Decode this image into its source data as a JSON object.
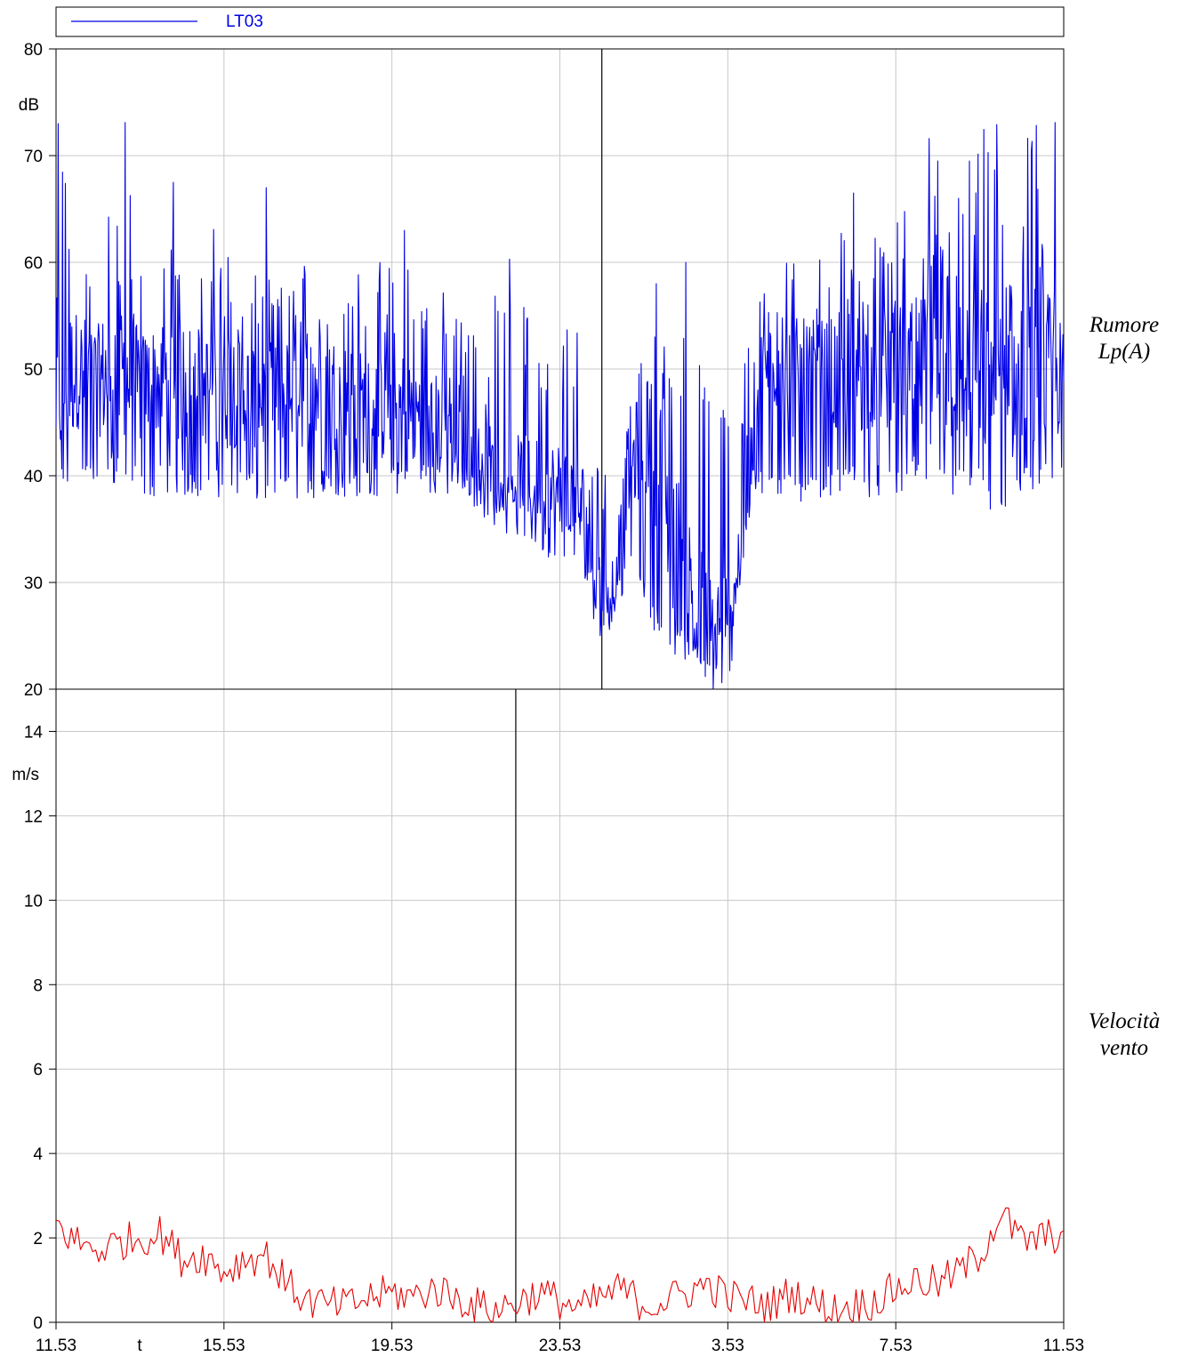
{
  "legend": {
    "label": "LT03",
    "color": "#0000e6"
  },
  "x_ticks": [
    "11.53",
    "15.53",
    "19.53",
    "23.53",
    "3.53",
    "7.53",
    "11.53"
  ],
  "x_axis_label": "t",
  "chart_data": [
    {
      "type": "line",
      "title": "",
      "side_label_lines": [
        "Rumore",
        "Lp(A)"
      ],
      "unit": "dB",
      "ylim": [
        20,
        80
      ],
      "y_ticks": [
        20,
        30,
        40,
        50,
        60,
        70,
        80
      ],
      "x_range_hours": [
        0,
        24
      ],
      "grid": true,
      "color": "#0000e6",
      "cursor_x_hours": 13.0,
      "series": [
        {
          "name": "LT03",
          "x_hours": [
            0.0,
            0.5,
            1.0,
            1.5,
            2.0,
            2.5,
            3.0,
            3.5,
            4.0,
            4.5,
            5.0,
            5.5,
            6.0,
            6.5,
            7.0,
            7.5,
            8.0,
            8.5,
            9.0,
            9.5,
            10.0,
            10.5,
            11.0,
            11.5,
            12.0,
            12.5,
            12.8,
            13.0,
            13.3,
            13.6,
            14.0,
            14.3,
            14.6,
            15.0,
            15.3,
            15.6,
            16.0,
            16.3,
            16.6,
            17.0,
            17.3,
            17.6,
            18.0,
            18.5,
            19.0,
            19.5,
            20.0,
            20.5,
            21.0,
            21.5,
            22.0,
            22.5,
            23.0,
            23.5,
            24.0
          ],
          "min_db": [
            38,
            39,
            39,
            39,
            38,
            38,
            38,
            38,
            38,
            38,
            37,
            38,
            37,
            38,
            38,
            38,
            38,
            39,
            38,
            38,
            38,
            37,
            37,
            36,
            35,
            33,
            25,
            26,
            26,
            30,
            28,
            25,
            22,
            23,
            22,
            20,
            24,
            30,
            38,
            38,
            38,
            37,
            38,
            38,
            38,
            38,
            38,
            39,
            38,
            38,
            38,
            35,
            38,
            38,
            39
          ],
          "max_db": [
            77,
            64,
            62,
            77,
            62,
            63,
            66,
            61,
            69,
            60,
            60,
            59,
            63,
            63,
            63,
            61,
            63,
            62,
            60,
            58,
            56,
            60,
            59,
            61,
            60,
            57,
            53,
            46,
            33,
            50,
            52,
            56,
            55,
            58,
            54,
            52,
            50,
            55,
            58,
            61,
            62,
            63,
            63,
            64,
            66,
            64,
            65,
            69,
            70,
            69,
            77,
            69,
            75,
            77,
            60
          ],
          "typical_db": [
            48,
            50,
            49,
            50,
            48,
            49,
            49,
            48,
            49,
            48,
            47,
            48,
            48,
            48,
            47,
            46,
            47,
            46,
            45,
            43,
            41,
            40,
            39,
            38,
            38,
            37,
            32,
            28,
            28,
            40,
            44,
            42,
            36,
            30,
            27,
            25,
            26,
            33,
            45,
            52,
            50,
            49,
            49,
            49,
            50,
            50,
            50,
            50,
            50,
            50,
            50,
            49,
            49,
            50,
            49
          ],
          "peaks": [
            {
              "x_hours": 1.65,
              "y": 73.1
            },
            {
              "x_hours": 0.05,
              "y": 73.0
            },
            {
              "x_hours": 23.8,
              "y": 73.1
            },
            {
              "x_hours": 22.4,
              "y": 72.9
            },
            {
              "x_hours": 20.8,
              "y": 71.6
            },
            {
              "x_hours": 5.0,
              "y": 67.0
            },
            {
              "x_hours": 2.8,
              "y": 67.5
            },
            {
              "x_hours": 8.3,
              "y": 63.0
            },
            {
              "x_hours": 10.8,
              "y": 60.3
            },
            {
              "x_hours": 14.3,
              "y": 58.0
            },
            {
              "x_hours": 15.0,
              "y": 60.0
            },
            {
              "x_hours": 19.0,
              "y": 66.5
            },
            {
              "x_hours": 21.0,
              "y": 69.5
            }
          ]
        }
      ]
    },
    {
      "type": "line",
      "title": "",
      "side_label_lines": [
        "Velocità",
        "vento"
      ],
      "unit": "m/s",
      "ylim": [
        0,
        15
      ],
      "y_ticks": [
        0,
        2,
        4,
        6,
        8,
        10,
        12,
        14
      ],
      "x_range_hours": [
        0,
        24
      ],
      "grid": true,
      "color": "#e60000",
      "cursor_x_hours": 10.95,
      "series": [
        {
          "name": "Velocità vento",
          "x_hours": [
            0.0,
            0.5,
            1.0,
            1.5,
            2.0,
            2.5,
            3.0,
            3.5,
            4.0,
            4.5,
            5.0,
            5.5,
            6.0,
            6.5,
            7.0,
            7.5,
            8.0,
            8.5,
            9.0,
            9.5,
            10.0,
            10.5,
            11.0,
            11.5,
            12.0,
            12.5,
            13.0,
            13.5,
            14.0,
            14.5,
            15.0,
            15.5,
            16.0,
            16.5,
            17.0,
            17.5,
            18.0,
            18.5,
            19.0,
            19.5,
            20.0,
            20.5,
            21.0,
            21.5,
            22.0,
            22.5,
            23.0,
            23.5,
            24.0
          ],
          "values": [
            2.3,
            1.9,
            1.7,
            1.9,
            2.0,
            2.1,
            1.5,
            1.6,
            1.2,
            1.5,
            1.6,
            0.9,
            0.5,
            0.4,
            0.4,
            0.6,
            0.7,
            0.6,
            0.8,
            0.6,
            0.4,
            0.3,
            0.5,
            0.7,
            0.5,
            0.3,
            0.6,
            0.8,
            0.4,
            0.5,
            0.7,
            0.9,
            0.6,
            0.5,
            0.4,
            0.7,
            0.5,
            0.3,
            0.4,
            0.5,
            0.8,
            1.0,
            0.9,
            1.2,
            1.6,
            2.6,
            1.9,
            2.0,
            2.1
          ]
        }
      ]
    }
  ]
}
